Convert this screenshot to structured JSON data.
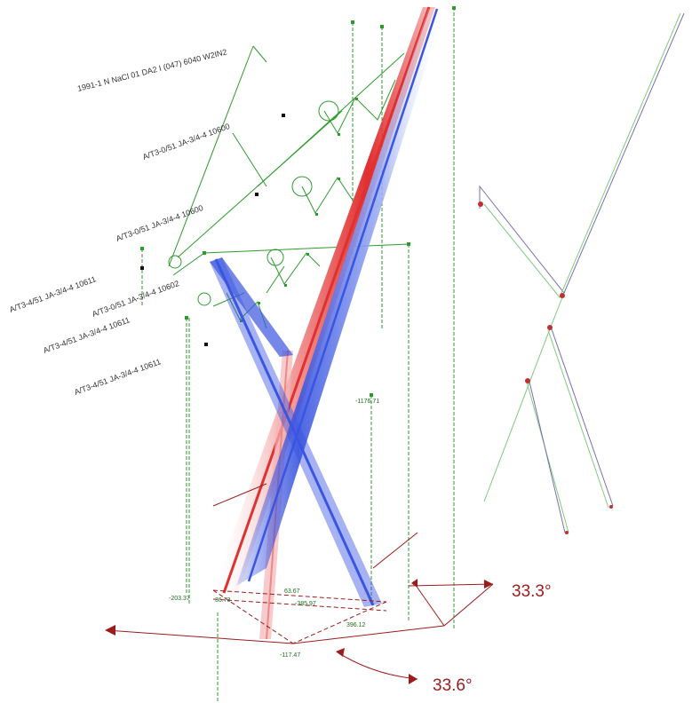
{
  "colors": {
    "green": "#2e9a2e",
    "dark_green": "#1f6b1f",
    "red": "#e03030",
    "blue": "#3a55e0",
    "dark_red": "#9b1c1c",
    "purple": "#7a6fb0"
  },
  "labels": [
    "1991-1 N NaCl 01 DA2 I (047) 6040 W2IN2",
    "A/T3-0/51 JA-3/4-4 10600",
    "A/T3-0/51 JA-3/4-4 10600",
    "A/T3-4/51 JA-3/4-4 10611",
    "A/T3-0/51 JA-3/4-4 10602",
    "A/T3-4/51 JA-3/4-4 10611",
    "A/T3-4/51 JA-3/4-4 10611"
  ],
  "dimensions": {
    "vertical_value": "-1176.71",
    "base_left": "-203.37",
    "base_left_b": "36.73",
    "base_mid": "-385.97",
    "base_right": "396.12",
    "base_top": "63.67",
    "base_bottom": "-117.47"
  },
  "angles": {
    "upper": "33.3°",
    "lower": "33.6°"
  }
}
